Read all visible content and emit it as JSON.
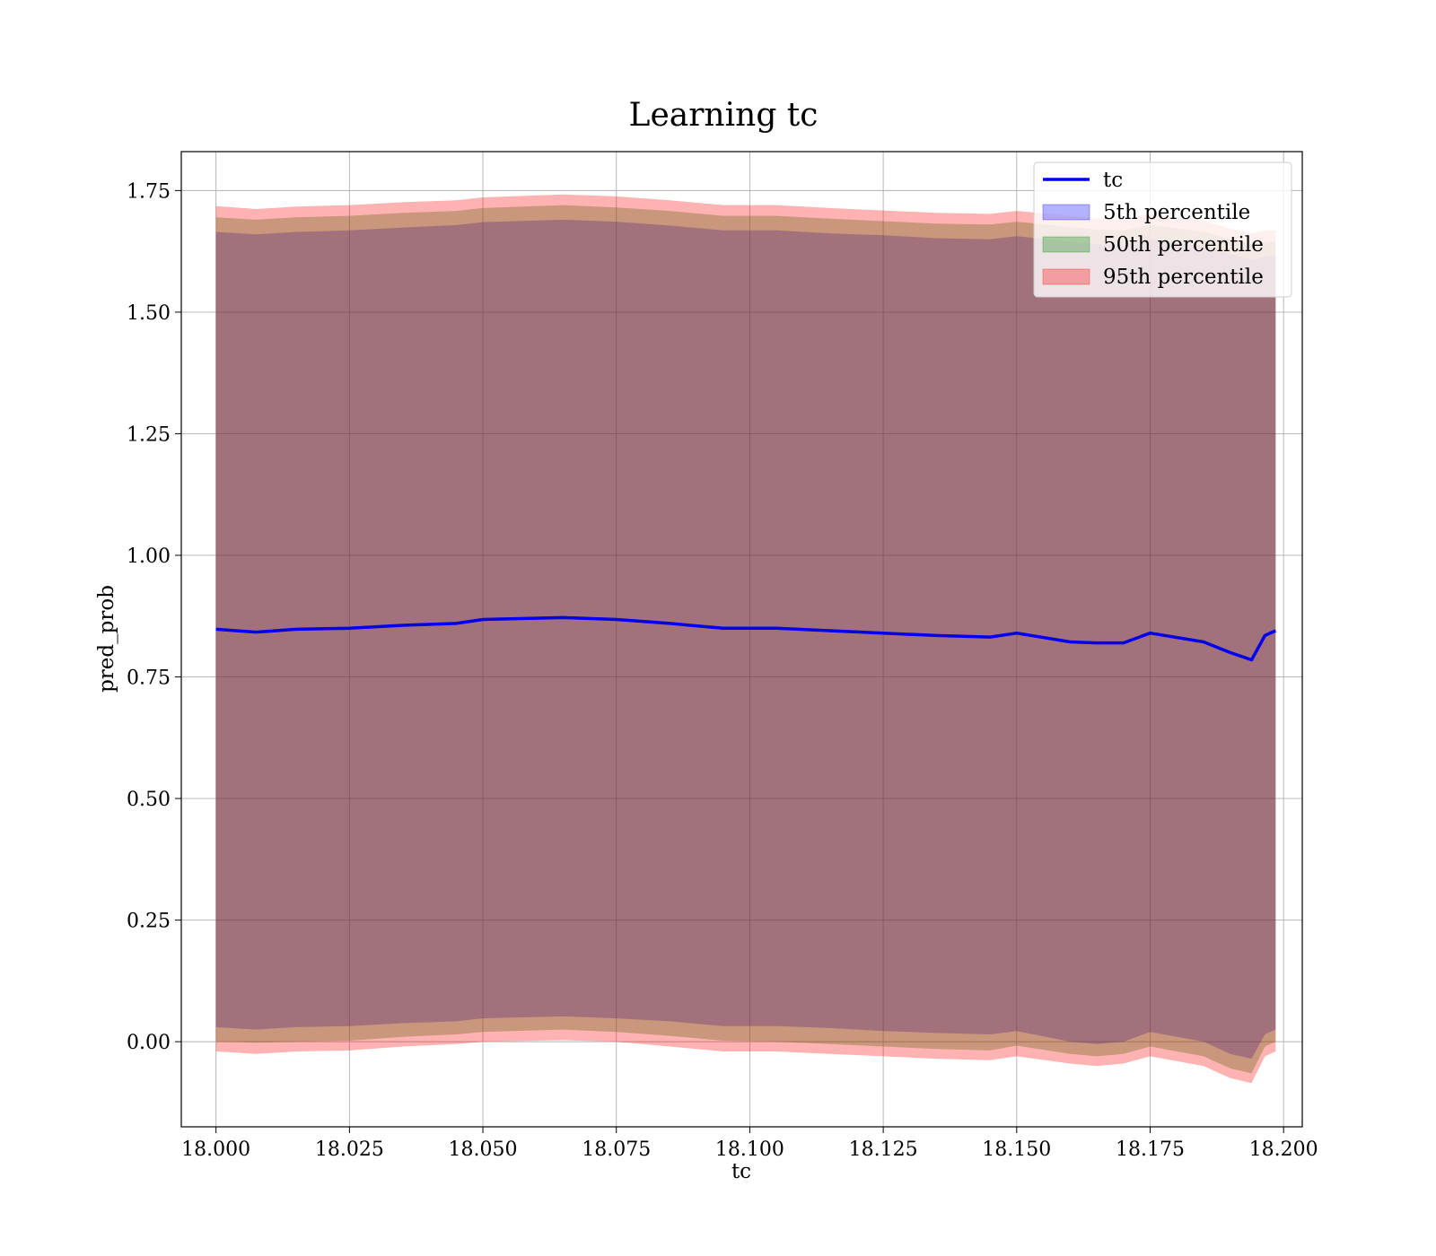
{
  "chart_data": {
    "type": "area",
    "title": "Learning tc",
    "xlabel": "tc",
    "ylabel": "pred_prob",
    "xlim": [
      17.9935,
      18.2035
    ],
    "ylim": [
      -0.175,
      1.83
    ],
    "grid": true,
    "legend_position": "top-right",
    "x_ticks": [
      "18.000",
      "18.025",
      "18.050",
      "18.075",
      "18.100",
      "18.125",
      "18.150",
      "18.175",
      "18.200"
    ],
    "x_tick_values": [
      18.0,
      18.025,
      18.05,
      18.075,
      18.1,
      18.125,
      18.15,
      18.175,
      18.2
    ],
    "y_ticks": [
      "0.00",
      "0.25",
      "0.50",
      "0.75",
      "1.00",
      "1.25",
      "1.50",
      "1.75"
    ],
    "y_tick_values": [
      0.0,
      0.25,
      0.5,
      0.75,
      1.0,
      1.25,
      1.5,
      1.75
    ],
    "x": [
      18.0,
      18.0075,
      18.015,
      18.025,
      18.035,
      18.045,
      18.05,
      18.065,
      18.075,
      18.085,
      18.095,
      18.105,
      18.115,
      18.125,
      18.135,
      18.145,
      18.15,
      18.16,
      18.165,
      18.17,
      18.175,
      18.185,
      18.19,
      18.194,
      18.1965,
      18.1985
    ],
    "series": [
      {
        "name": "tc",
        "kind": "line",
        "color": "#0000ee",
        "values": [
          0.848,
          0.842,
          0.848,
          0.85,
          0.856,
          0.86,
          0.868,
          0.872,
          0.868,
          0.86,
          0.85,
          0.85,
          0.845,
          0.84,
          0.835,
          0.832,
          0.84,
          0.822,
          0.82,
          0.82,
          0.84,
          0.822,
          0.8,
          0.785,
          0.835,
          0.845
        ]
      },
      {
        "name": "5th percentile",
        "kind": "band",
        "color": "#0000ff",
        "lower": [
          0.03,
          0.025,
          0.03,
          0.032,
          0.038,
          0.042,
          0.048,
          0.052,
          0.048,
          0.042,
          0.032,
          0.032,
          0.028,
          0.022,
          0.018,
          0.015,
          0.022,
          0.0,
          -0.005,
          0.0,
          0.02,
          0.0,
          -0.025,
          -0.035,
          0.015,
          0.025
        ],
        "upper": [
          1.665,
          1.66,
          1.665,
          1.668,
          1.674,
          1.679,
          1.685,
          1.69,
          1.686,
          1.678,
          1.668,
          1.668,
          1.662,
          1.658,
          1.652,
          1.65,
          1.656,
          1.645,
          1.64,
          1.638,
          1.65,
          1.635,
          1.62,
          1.608,
          1.615,
          1.615
        ]
      },
      {
        "name": "50th percentile",
        "kind": "band",
        "color": "#008000",
        "lower": [
          0.0,
          -0.002,
          0.0,
          0.002,
          0.01,
          0.015,
          0.02,
          0.025,
          0.02,
          0.012,
          0.002,
          0.0,
          -0.005,
          -0.01,
          -0.015,
          -0.018,
          -0.008,
          -0.025,
          -0.03,
          -0.025,
          -0.01,
          -0.03,
          -0.055,
          -0.065,
          -0.01,
          0.0
        ],
        "upper": [
          1.695,
          1.69,
          1.695,
          1.698,
          1.704,
          1.708,
          1.714,
          1.72,
          1.715,
          1.708,
          1.698,
          1.698,
          1.692,
          1.687,
          1.682,
          1.68,
          1.686,
          1.675,
          1.67,
          1.668,
          1.68,
          1.665,
          1.65,
          1.64,
          1.645,
          1.645
        ]
      },
      {
        "name": "95th percentile",
        "kind": "band",
        "color": "#ff0000",
        "lower": [
          -0.02,
          -0.025,
          -0.02,
          -0.018,
          -0.01,
          -0.005,
          0.0,
          0.003,
          0.0,
          -0.01,
          -0.02,
          -0.02,
          -0.025,
          -0.03,
          -0.035,
          -0.038,
          -0.03,
          -0.045,
          -0.05,
          -0.045,
          -0.03,
          -0.05,
          -0.075,
          -0.085,
          -0.03,
          -0.02
        ],
        "upper": [
          1.718,
          1.712,
          1.717,
          1.72,
          1.726,
          1.73,
          1.736,
          1.742,
          1.738,
          1.73,
          1.72,
          1.72,
          1.714,
          1.709,
          1.704,
          1.702,
          1.708,
          1.698,
          1.692,
          1.69,
          1.702,
          1.688,
          1.672,
          1.662,
          1.668,
          1.668
        ]
      }
    ]
  }
}
